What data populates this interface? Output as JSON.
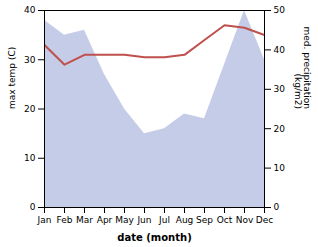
{
  "chart_data": {
    "type": "line",
    "categories": [
      "Jan",
      "Feb",
      "Mar",
      "Apr",
      "May",
      "Jun",
      "Jul",
      "Aug",
      "Sep",
      "Oct",
      "Nov",
      "Dec"
    ],
    "xlabel": "date (month)",
    "ylabel": "max temp (C)",
    "y2label": "med. precipitation\n(kg/m2)",
    "ylim": [
      0,
      40
    ],
    "yticks": [
      0,
      10,
      20,
      30,
      40
    ],
    "y2lim": [
      0,
      50
    ],
    "y2ticks": [
      0,
      10,
      20,
      30,
      40,
      50
    ],
    "series": [
      {
        "type": "area",
        "axis": "y2",
        "color": "#c5cce8",
        "values": [
          47.5,
          43.75,
          45,
          33.75,
          25,
          18.75,
          20,
          23.75,
          22.5,
          36.25,
          50,
          37.5
        ]
      },
      {
        "type": "line",
        "color": "#c0504d",
        "values": [
          33,
          29,
          31,
          31,
          31,
          30.5,
          30.5,
          31,
          34,
          37,
          36.5,
          35
        ]
      }
    ]
  }
}
